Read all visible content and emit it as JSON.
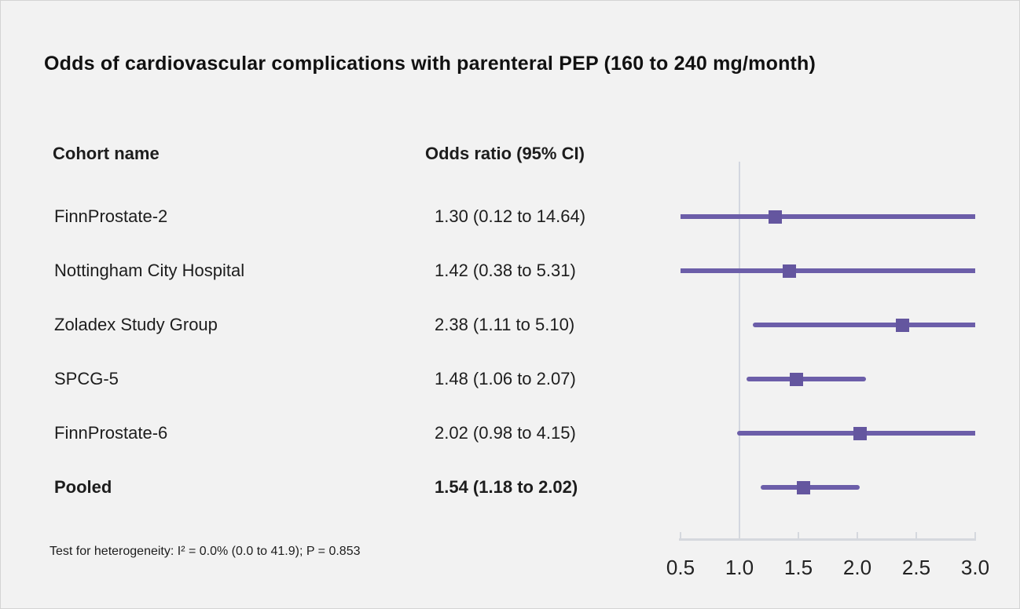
{
  "title": "Odds of cardiovascular complications with parenteral PEP (160 to 240 mg/month)",
  "columns": {
    "cohort": "Cohort name",
    "odds_ratio": "Odds ratio (95% CI)"
  },
  "footnote": "Test for heterogeneity: I² = 0.0% (0.0 to 41.9); P = 0.853",
  "colors": {
    "background": "#f2f2f2",
    "ci_line": "#6c5ea9",
    "marker": "#64569f",
    "reference_line": "#d3d7e0",
    "axis": "#d5d8de",
    "text": "#1d1d1d"
  },
  "chart_data": {
    "type": "scatter",
    "variant": "forest-plot",
    "title": "Odds of cardiovascular complications with parenteral PEP (160 to 240 mg/month)",
    "xlabel": "",
    "ylabel": "",
    "marker": "square",
    "grid": false,
    "legend": "none",
    "x_axis": {
      "scale": "linear",
      "range": [
        0.5,
        3.0
      ],
      "ticks": [
        0.5,
        1.0,
        1.5,
        2.0,
        2.5,
        3.0
      ],
      "reference_line": 1.0,
      "clipped_to_range": true
    },
    "studies": [
      {
        "name": "FinnProstate-2",
        "or_text": "1.30 (0.12 to 14.64)",
        "or": 1.3,
        "ci_low": 0.12,
        "ci_high": 14.64,
        "pooled": false
      },
      {
        "name": "Nottingham City Hospital",
        "or_text": "1.42 (0.38 to 5.31)",
        "or": 1.42,
        "ci_low": 0.38,
        "ci_high": 5.31,
        "pooled": false
      },
      {
        "name": "Zoladex Study Group",
        "or_text": "2.38 (1.11 to 5.10)",
        "or": 2.38,
        "ci_low": 1.11,
        "ci_high": 5.1,
        "pooled": false
      },
      {
        "name": "SPCG-5",
        "or_text": "1.48 (1.06 to 2.07)",
        "or": 1.48,
        "ci_low": 1.06,
        "ci_high": 2.07,
        "pooled": false
      },
      {
        "name": "FinnProstate-6",
        "or_text": "2.02 (0.98 to 4.15)",
        "or": 2.02,
        "ci_low": 0.98,
        "ci_high": 4.15,
        "pooled": false
      },
      {
        "name": "Pooled",
        "or_text": "1.54 (1.18 to 2.02)",
        "or": 1.54,
        "ci_low": 1.18,
        "ci_high": 2.02,
        "pooled": true
      }
    ],
    "heterogeneity_note": "Test for heterogeneity: I² = 0.0% (0.0 to 41.9); P = 0.853"
  }
}
